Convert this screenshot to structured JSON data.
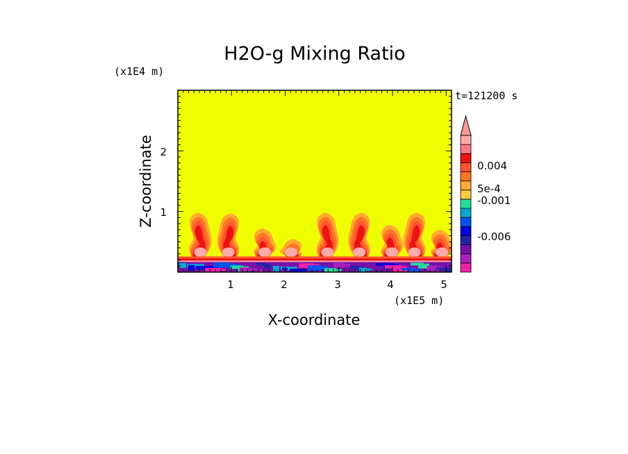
{
  "chart_data": {
    "type": "heatmap",
    "title": "H2O-g Mixing Ratio",
    "xlabel": "X-coordinate",
    "ylabel": "Z-coordinate",
    "x_scale_label": "(x1E5 m)",
    "y_scale_label": "(x1E4 m)",
    "time_label": "t=121200 s",
    "x_ticks": [
      "1",
      "2",
      "3",
      "4",
      "5"
    ],
    "y_ticks": [
      "1",
      "2"
    ],
    "xlim": [
      0,
      5.1
    ],
    "ylim": [
      0,
      3
    ],
    "colorbar": {
      "tick_labels": [
        "0.004",
        "5e-4",
        "-0.001",
        "-0.006"
      ],
      "colors": [
        "#ee22aa",
        "#aa22bb",
        "#7711aa",
        "#2222aa",
        "#0000dd",
        "#0055ee",
        "#00aacc",
        "#22dd99",
        "#ffcc44",
        "#ffaa33",
        "#ff7722",
        "#ff5533",
        "#ee1111",
        "#ff7788",
        "#ffaaaa"
      ],
      "background_color": "#f0ff00"
    },
    "plumes": [
      {
        "x": 0.38,
        "top": 0.98
      },
      {
        "x": 0.98,
        "top": 0.97
      },
      {
        "x": 1.58,
        "top": 0.72
      },
      {
        "x": 2.15,
        "top": 0.55
      },
      {
        "x": 2.75,
        "top": 0.98
      },
      {
        "x": 3.42,
        "top": 0.98
      },
      {
        "x": 3.95,
        "top": 0.78
      },
      {
        "x": 4.45,
        "top": 0.98
      },
      {
        "x": 4.88,
        "top": 0.7
      }
    ],
    "surface_layer_top": 0.19
  }
}
